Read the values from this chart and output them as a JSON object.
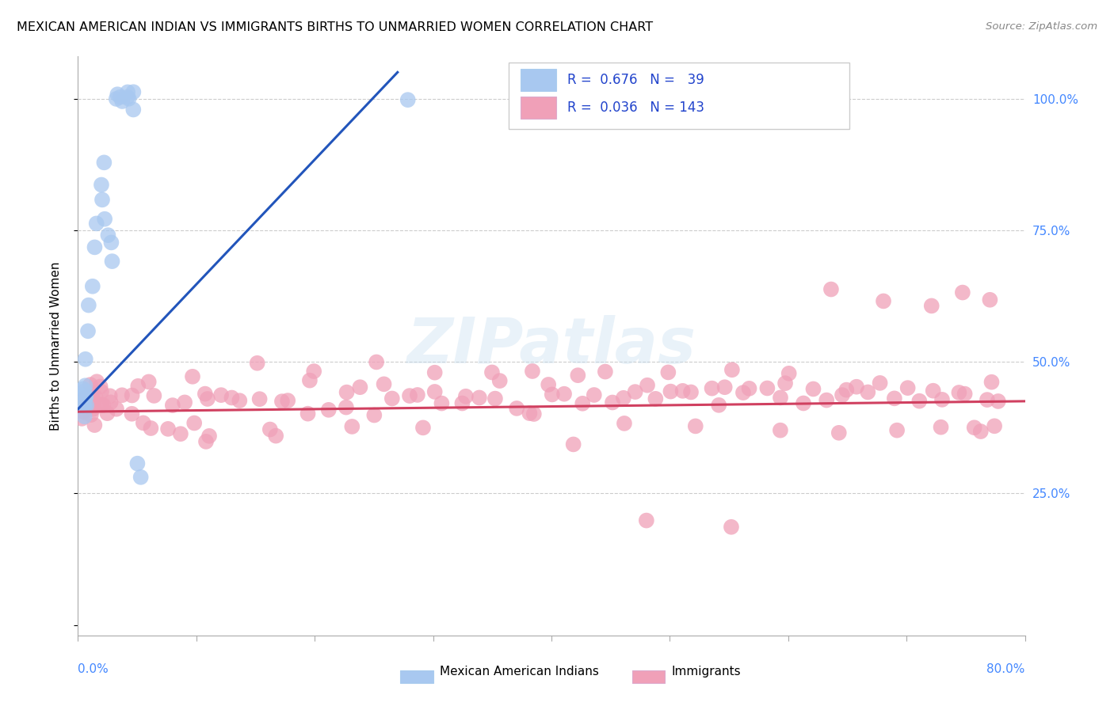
{
  "title": "MEXICAN AMERICAN INDIAN VS IMMIGRANTS BIRTHS TO UNMARRIED WOMEN CORRELATION CHART",
  "source": "Source: ZipAtlas.com",
  "ylabel": "Births to Unmarried Women",
  "watermark": "ZIPatlas",
  "legend_label1": "Mexican American Indians",
  "legend_label2": "Immigrants",
  "R1": "0.676",
  "N1": "39",
  "R2": "0.036",
  "N2": "143",
  "color_blue": "#a8c8f0",
  "color_pink": "#f0a0b8",
  "color_blue_line": "#2255bb",
  "color_pink_line": "#d04060",
  "xlim": [
    0.0,
    0.8
  ],
  "ylim": [
    -0.02,
    1.08
  ],
  "blue_x": [
    0.001,
    0.002,
    0.002,
    0.003,
    0.003,
    0.004,
    0.004,
    0.005,
    0.005,
    0.006,
    0.006,
    0.007,
    0.007,
    0.008,
    0.008,
    0.009,
    0.01,
    0.012,
    0.015,
    0.017,
    0.019,
    0.02,
    0.022,
    0.024,
    0.026,
    0.028,
    0.03,
    0.032,
    0.034,
    0.036,
    0.038,
    0.04,
    0.042,
    0.044,
    0.046,
    0.048,
    0.05,
    0.055,
    0.28
  ],
  "blue_y": [
    0.42,
    0.41,
    0.43,
    0.42,
    0.44,
    0.43,
    0.45,
    0.42,
    0.44,
    0.43,
    0.41,
    0.43,
    0.42,
    0.46,
    0.5,
    0.55,
    0.6,
    0.65,
    0.72,
    0.76,
    0.8,
    0.84,
    0.88,
    0.78,
    0.75,
    0.72,
    0.68,
    1.0,
    1.0,
    1.0,
    1.0,
    1.0,
    1.0,
    1.0,
    1.0,
    1.0,
    0.3,
    0.28,
    1.0
  ],
  "pink_x": [
    0.003,
    0.004,
    0.005,
    0.006,
    0.006,
    0.007,
    0.008,
    0.008,
    0.009,
    0.01,
    0.01,
    0.011,
    0.012,
    0.013,
    0.014,
    0.015,
    0.016,
    0.017,
    0.018,
    0.019,
    0.02,
    0.022,
    0.024,
    0.026,
    0.028,
    0.03,
    0.033,
    0.036,
    0.04,
    0.045,
    0.05,
    0.06,
    0.07,
    0.08,
    0.09,
    0.1,
    0.11,
    0.12,
    0.13,
    0.14,
    0.15,
    0.16,
    0.17,
    0.18,
    0.19,
    0.2,
    0.21,
    0.22,
    0.23,
    0.24,
    0.25,
    0.26,
    0.27,
    0.28,
    0.29,
    0.3,
    0.31,
    0.32,
    0.33,
    0.34,
    0.35,
    0.36,
    0.37,
    0.38,
    0.39,
    0.4,
    0.41,
    0.42,
    0.43,
    0.44,
    0.45,
    0.46,
    0.47,
    0.48,
    0.49,
    0.5,
    0.51,
    0.52,
    0.53,
    0.54,
    0.55,
    0.56,
    0.57,
    0.58,
    0.59,
    0.6,
    0.61,
    0.62,
    0.63,
    0.64,
    0.65,
    0.66,
    0.67,
    0.68,
    0.69,
    0.7,
    0.71,
    0.72,
    0.73,
    0.74,
    0.75,
    0.76,
    0.77,
    0.78,
    0.1,
    0.15,
    0.2,
    0.25,
    0.3,
    0.35,
    0.4,
    0.45,
    0.5,
    0.55,
    0.6,
    0.64,
    0.68,
    0.72,
    0.75,
    0.77,
    0.055,
    0.065,
    0.075,
    0.085,
    0.095,
    0.105,
    0.115,
    0.17,
    0.23,
    0.29,
    0.38,
    0.45,
    0.52,
    0.59,
    0.64,
    0.69,
    0.73,
    0.755,
    0.765,
    0.775,
    0.42,
    0.48,
    0.545
  ],
  "pink_y": [
    0.42,
    0.41,
    0.43,
    0.42,
    0.44,
    0.43,
    0.42,
    0.44,
    0.43,
    0.41,
    0.43,
    0.42,
    0.44,
    0.43,
    0.42,
    0.41,
    0.43,
    0.42,
    0.44,
    0.43,
    0.42,
    0.41,
    0.43,
    0.42,
    0.44,
    0.43,
    0.42,
    0.41,
    0.43,
    0.42,
    0.44,
    0.43,
    0.42,
    0.44,
    0.43,
    0.42,
    0.44,
    0.43,
    0.42,
    0.44,
    0.43,
    0.42,
    0.44,
    0.43,
    0.42,
    0.44,
    0.43,
    0.42,
    0.44,
    0.43,
    0.42,
    0.44,
    0.43,
    0.45,
    0.43,
    0.44,
    0.43,
    0.42,
    0.44,
    0.43,
    0.42,
    0.44,
    0.43,
    0.45,
    0.43,
    0.44,
    0.43,
    0.47,
    0.43,
    0.44,
    0.43,
    0.44,
    0.43,
    0.45,
    0.44,
    0.43,
    0.44,
    0.43,
    0.44,
    0.43,
    0.46,
    0.43,
    0.44,
    0.45,
    0.43,
    0.44,
    0.43,
    0.44,
    0.43,
    0.44,
    0.43,
    0.44,
    0.43,
    0.44,
    0.43,
    0.44,
    0.43,
    0.44,
    0.43,
    0.44,
    0.43,
    0.44,
    0.43,
    0.44,
    0.49,
    0.48,
    0.47,
    0.49,
    0.47,
    0.48,
    0.47,
    0.48,
    0.49,
    0.47,
    0.48,
    0.65,
    0.62,
    0.6,
    0.64,
    0.63,
    0.38,
    0.37,
    0.38,
    0.37,
    0.38,
    0.37,
    0.38,
    0.37,
    0.38,
    0.37,
    0.38,
    0.37,
    0.38,
    0.37,
    0.38,
    0.37,
    0.38,
    0.37,
    0.38,
    0.37,
    0.32,
    0.2,
    0.18
  ]
}
